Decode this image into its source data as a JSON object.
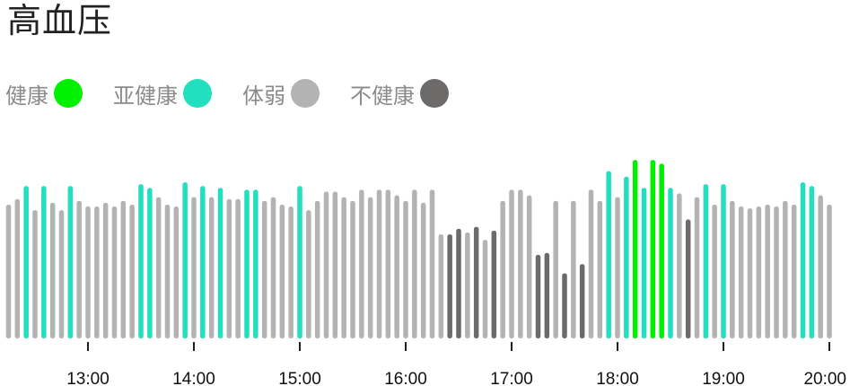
{
  "title": "高血压",
  "legend": [
    {
      "label": "健康",
      "color": "#00f000",
      "status": "healthy"
    },
    {
      "label": "亚健康",
      "color": "#22dfc0",
      "status": "subhealthy"
    },
    {
      "label": "体弱",
      "color": "#b3b3b3",
      "status": "weak"
    },
    {
      "label": "不健康",
      "color": "#6d6a6a",
      "status": "unhealthy"
    }
  ],
  "chart_data": {
    "type": "bar",
    "title": "高血压",
    "xlabel": "",
    "ylabel": "",
    "x_ticks": [
      "13:00",
      "14:00",
      "15:00",
      "16:00",
      "17:00",
      "18:00",
      "19:00",
      "20:00"
    ],
    "x_range_hours": [
      12.0,
      20.0
    ],
    "interval_minutes": 5,
    "ylim": [
      0,
      100
    ],
    "grid": false,
    "legend_position": "top-left",
    "status_colors": {
      "healthy": "#00f000",
      "subhealthy": "#22dfc0",
      "weak": "#b3b3b3",
      "unhealthy": "#6d6a6a"
    },
    "statuses": [
      "weak",
      "weak",
      "subhealthy",
      "weak",
      "subhealthy",
      "weak",
      "weak",
      "subhealthy",
      "weak",
      "weak",
      "weak",
      "weak",
      "weak",
      "weak",
      "weak",
      "subhealthy",
      "subhealthy",
      "weak",
      "weak",
      "weak",
      "subhealthy",
      "weak",
      "subhealthy",
      "weak",
      "subhealthy",
      "weak",
      "weak",
      "subhealthy",
      "subhealthy",
      "weak",
      "weak",
      "weak",
      "weak",
      "subhealthy",
      "weak",
      "weak",
      "weak",
      "weak",
      "weak",
      "weak",
      "weak",
      "weak",
      "weak",
      "weak",
      "weak",
      "weak",
      "weak",
      "weak",
      "weak",
      "weak",
      "unhealthy",
      "unhealthy",
      "weak",
      "unhealthy",
      "weak",
      "unhealthy",
      "weak",
      "weak",
      "weak",
      "weak",
      "unhealthy",
      "unhealthy",
      "weak",
      "unhealthy",
      "weak",
      "unhealthy",
      "weak",
      "weak",
      "subhealthy",
      "weak",
      "subhealthy",
      "healthy",
      "subhealthy",
      "healthy",
      "healthy",
      "subhealthy",
      "weak",
      "unhealthy",
      "weak",
      "subhealthy",
      "weak",
      "subhealthy",
      "weak",
      "weak",
      "weak",
      "weak",
      "weak",
      "weak",
      "weak",
      "weak",
      "subhealthy",
      "subhealthy",
      "weak",
      "weak"
    ],
    "values": [
      72,
      75,
      82,
      69,
      82,
      73,
      69,
      82,
      74,
      71,
      71,
      73,
      71,
      74,
      72,
      83,
      81,
      76,
      72,
      71,
      84,
      76,
      82,
      76,
      81,
      75,
      75,
      80,
      80,
      74,
      76,
      72,
      71,
      82,
      69,
      74,
      79,
      79,
      76,
      74,
      80,
      76,
      80,
      80,
      77,
      74,
      80,
      73,
      80,
      56,
      56,
      59,
      57,
      60,
      53,
      58,
      74,
      80,
      80,
      77,
      45,
      46,
      74,
      35,
      74,
      40,
      80,
      74,
      90,
      76,
      87,
      96,
      81,
      96,
      94,
      81,
      78,
      64,
      76,
      83,
      72,
      83,
      74,
      71,
      70,
      71,
      72,
      71,
      74,
      72,
      84,
      82,
      77,
      72
    ]
  }
}
